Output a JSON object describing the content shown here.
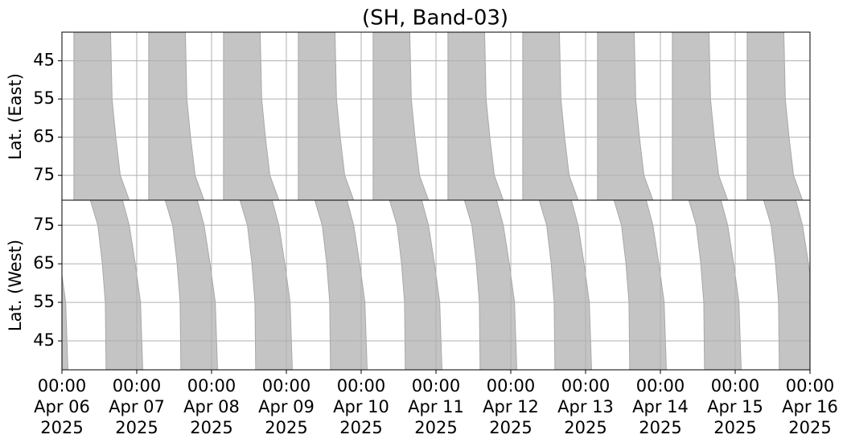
{
  "chart_data": [
    {
      "type": "area",
      "title": "(SH, Band-03)",
      "ylabel": "Lat. (East)",
      "xlim": [
        0,
        10
      ],
      "xticks": [
        0,
        1,
        2,
        3,
        4,
        5,
        6,
        7,
        8,
        9,
        10
      ],
      "ylim": [
        37.5,
        81.5
      ],
      "y_inverted": true,
      "yticks": [
        45,
        55,
        65,
        75
      ],
      "grid": true,
      "color": "#c4c4c4",
      "lat": [
        37.5,
        55,
        65,
        75,
        81.5
      ],
      "bands": [
        {
          "start": [
            0.16,
            0.16,
            0.16,
            0.16,
            0.16
          ],
          "end": [
            0.65,
            0.67,
            0.72,
            0.78,
            0.9
          ]
        },
        {
          "start": [
            1.16,
            1.16,
            1.16,
            1.16,
            1.16
          ],
          "end": [
            1.65,
            1.67,
            1.72,
            1.78,
            1.9
          ]
        },
        {
          "start": [
            2.16,
            2.16,
            2.16,
            2.16,
            2.16
          ],
          "end": [
            2.65,
            2.67,
            2.72,
            2.78,
            2.9
          ]
        },
        {
          "start": [
            3.16,
            3.16,
            3.16,
            3.16,
            3.16
          ],
          "end": [
            3.65,
            3.67,
            3.72,
            3.78,
            3.9
          ]
        },
        {
          "start": [
            4.16,
            4.16,
            4.16,
            4.16,
            4.16
          ],
          "end": [
            4.65,
            4.67,
            4.72,
            4.78,
            4.9
          ]
        },
        {
          "start": [
            5.16,
            5.16,
            5.16,
            5.16,
            5.16
          ],
          "end": [
            5.65,
            5.67,
            5.72,
            5.78,
            5.9
          ]
        },
        {
          "start": [
            6.16,
            6.16,
            6.16,
            6.16,
            6.16
          ],
          "end": [
            6.65,
            6.67,
            6.72,
            6.78,
            6.9
          ]
        },
        {
          "start": [
            7.16,
            7.16,
            7.16,
            7.16,
            7.16
          ],
          "end": [
            7.65,
            7.67,
            7.72,
            7.78,
            7.9
          ]
        },
        {
          "start": [
            8.16,
            8.16,
            8.16,
            8.16,
            8.16
          ],
          "end": [
            8.65,
            8.67,
            8.72,
            8.78,
            8.9
          ]
        },
        {
          "start": [
            9.16,
            9.16,
            9.16,
            9.16,
            9.16
          ],
          "end": [
            9.65,
            9.67,
            9.72,
            9.78,
            9.9
          ]
        }
      ]
    },
    {
      "type": "area",
      "ylabel": "Lat. (West)",
      "xlim": [
        0,
        10
      ],
      "xticks": [
        {
          "value": 0,
          "label": "00:00\nApr 06\n2025"
        },
        {
          "value": 1,
          "label": "00:00\nApr 07\n2025"
        },
        {
          "value": 2,
          "label": "00:00\nApr 08\n2025"
        },
        {
          "value": 3,
          "label": "00:00\nApr 09\n2025"
        },
        {
          "value": 4,
          "label": "00:00\nApr 10\n2025"
        },
        {
          "value": 5,
          "label": "00:00\nApr 11\n2025"
        },
        {
          "value": 6,
          "label": "00:00\nApr 12\n2025"
        },
        {
          "value": 7,
          "label": "00:00\nApr 13\n2025"
        },
        {
          "value": 8,
          "label": "00:00\nApr 14\n2025"
        },
        {
          "value": 9,
          "label": "00:00\nApr 15\n2025"
        },
        {
          "value": 10,
          "label": "00:00\nApr 16\n2025"
        }
      ],
      "ylim": [
        37.5,
        81.5
      ],
      "y_inverted": false,
      "yticks": [
        45,
        55,
        65,
        75
      ],
      "grid": true,
      "color": "#c4c4c4",
      "lat": [
        37.5,
        55,
        65,
        75,
        81.5
      ],
      "bands": [
        {
          "start": [
            -0.41,
            -0.42,
            -0.46,
            -0.52,
            -0.62
          ],
          "end": [
            0.08,
            0.05,
            -0.02,
            -0.1,
            -0.19
          ]
        },
        {
          "start": [
            0.59,
            0.58,
            0.54,
            0.48,
            0.38
          ],
          "end": [
            1.08,
            1.05,
            0.98,
            0.9,
            0.81
          ]
        },
        {
          "start": [
            1.59,
            1.58,
            1.54,
            1.48,
            1.38
          ],
          "end": [
            2.08,
            2.05,
            1.98,
            1.9,
            1.81
          ]
        },
        {
          "start": [
            2.59,
            2.58,
            2.54,
            2.48,
            2.38
          ],
          "end": [
            3.08,
            3.05,
            2.98,
            2.9,
            2.81
          ]
        },
        {
          "start": [
            3.59,
            3.58,
            3.54,
            3.48,
            3.38
          ],
          "end": [
            4.08,
            4.05,
            3.98,
            3.9,
            3.81
          ]
        },
        {
          "start": [
            4.59,
            4.58,
            4.54,
            4.48,
            4.38
          ],
          "end": [
            5.08,
            5.05,
            4.98,
            4.9,
            4.81
          ]
        },
        {
          "start": [
            5.59,
            5.58,
            5.54,
            5.48,
            5.38
          ],
          "end": [
            6.08,
            6.05,
            5.98,
            5.9,
            5.81
          ]
        },
        {
          "start": [
            6.59,
            6.58,
            6.54,
            6.48,
            6.38
          ],
          "end": [
            7.08,
            7.05,
            6.98,
            6.9,
            6.81
          ]
        },
        {
          "start": [
            7.59,
            7.58,
            7.54,
            7.48,
            7.38
          ],
          "end": [
            8.08,
            8.05,
            7.98,
            7.9,
            7.81
          ]
        },
        {
          "start": [
            8.59,
            8.58,
            8.54,
            8.48,
            8.38
          ],
          "end": [
            9.08,
            9.05,
            8.98,
            8.9,
            8.81
          ]
        },
        {
          "start": [
            9.59,
            9.58,
            9.54,
            9.48,
            9.38
          ],
          "end": [
            10.08,
            10.05,
            9.98,
            9.9,
            9.81
          ]
        }
      ]
    }
  ]
}
